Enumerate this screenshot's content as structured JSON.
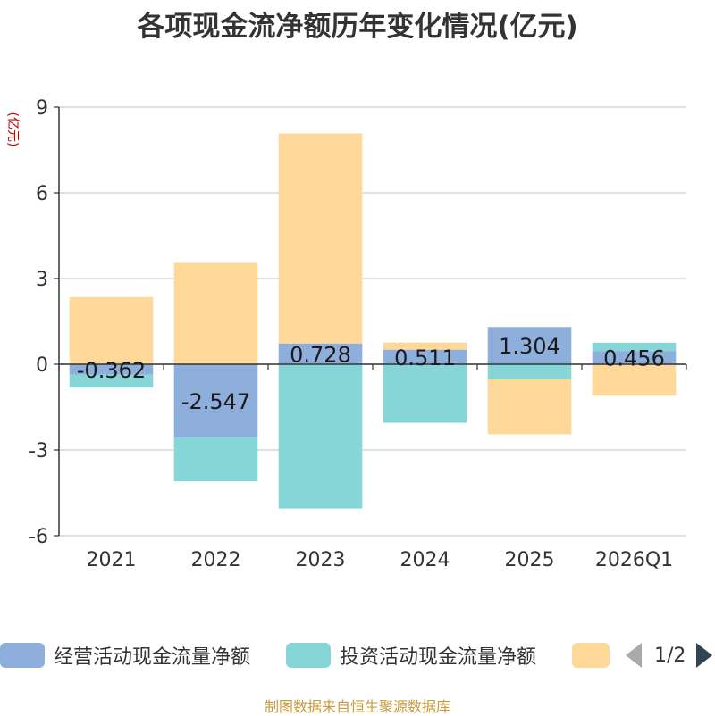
{
  "title": "各项现金流净额历年变化情况(亿元)",
  "source": "制图数据来自恒生聚源数据库",
  "legend": {
    "page": "1/2",
    "items": [
      {
        "label": "经营活动现金流量净额",
        "color": "#8eaedb"
      },
      {
        "label": "投资活动现金流量净额",
        "color": "#86d6d8"
      },
      {
        "label": "",
        "color": "#fdd898"
      }
    ]
  },
  "chart_data": {
    "type": "bar",
    "stacked": true,
    "ylabel": "(亿元)",
    "ylim": [
      -6,
      9
    ],
    "yticks": [
      -6,
      -3,
      0,
      3,
      6,
      9
    ],
    "categories": [
      "2021",
      "2022",
      "2023",
      "2024",
      "2025",
      "2026Q1"
    ],
    "series": [
      {
        "name": "经营活动现金流量净额",
        "color": "#8eaedb",
        "values": [
          -0.362,
          -2.547,
          0.728,
          0.511,
          1.304,
          0.456
        ],
        "labels": [
          "-0.362",
          "-2.547",
          "0.728",
          "0.511",
          "1.304",
          "0.456"
        ]
      },
      {
        "name": "投资活动现金流量净额",
        "color": "#86d6d8",
        "values": [
          -0.45,
          -1.55,
          -5.05,
          -2.05,
          -0.5,
          0.3
        ]
      },
      {
        "name": "",
        "color": "#fdd898",
        "values": [
          2.35,
          3.55,
          7.35,
          0.25,
          -1.95,
          -1.1
        ]
      }
    ]
  }
}
